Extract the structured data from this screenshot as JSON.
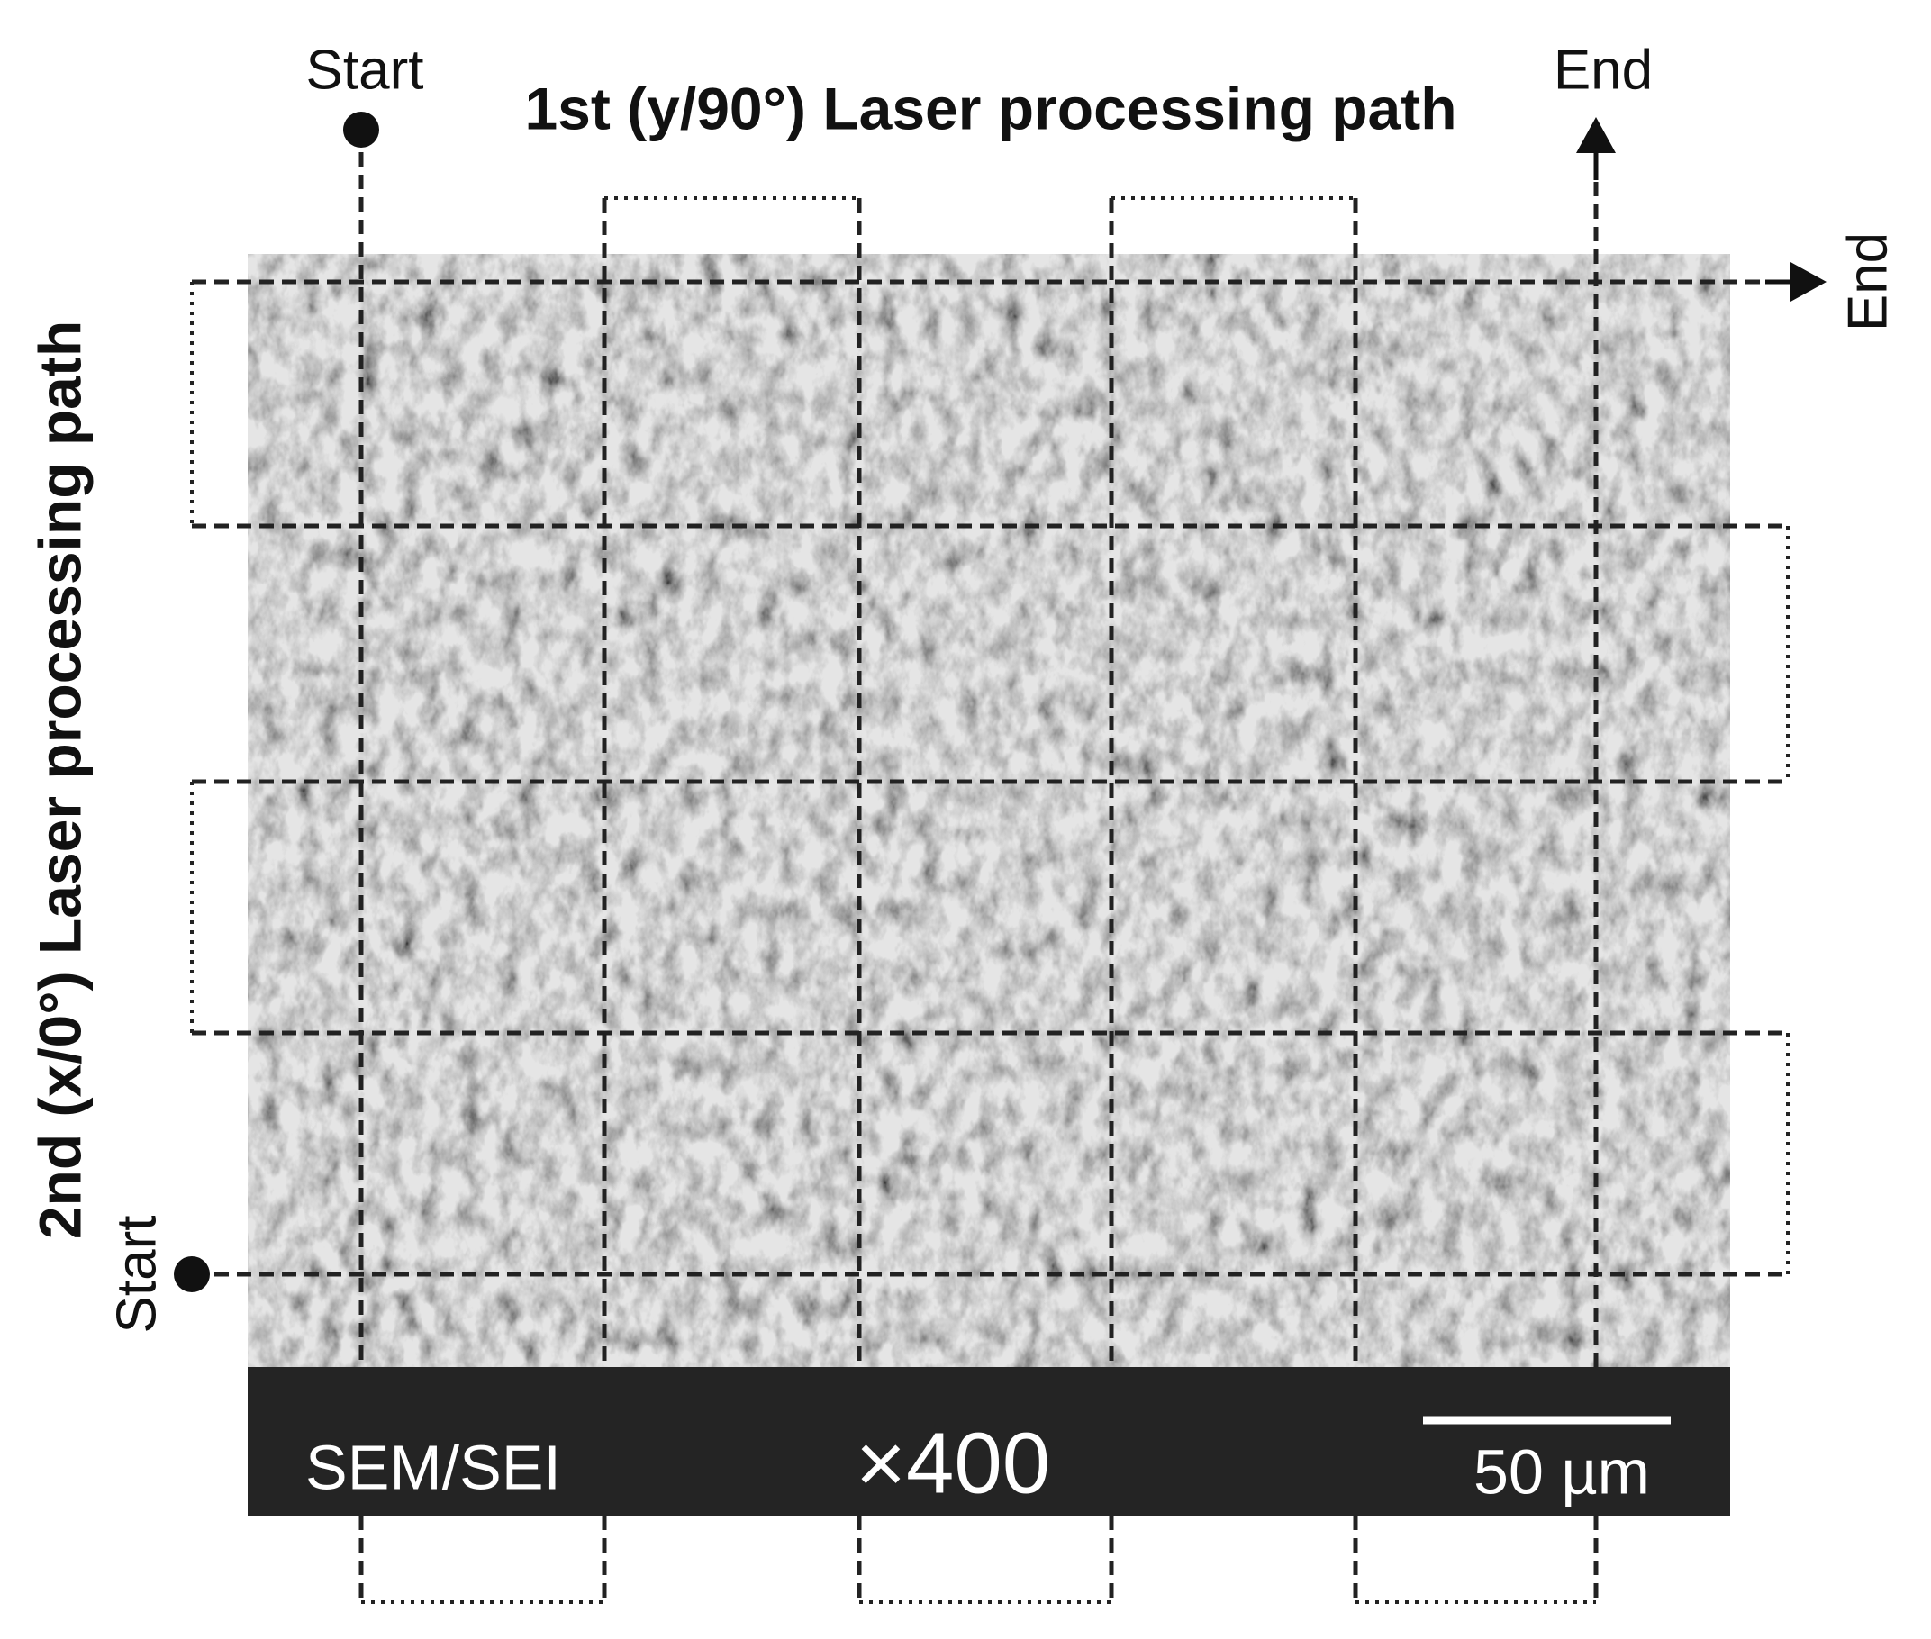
{
  "top_start": "Start",
  "title_1st": "1st (y/90°) Laser processing path",
  "top_end": "End",
  "right_end": "End",
  "title_2nd": "2nd (x/0°) Laser processing path",
  "left_start": "Start",
  "info_bar": {
    "mode": "SEM/SEI",
    "magnification": "×400",
    "scale_bar": "50 µm"
  }
}
